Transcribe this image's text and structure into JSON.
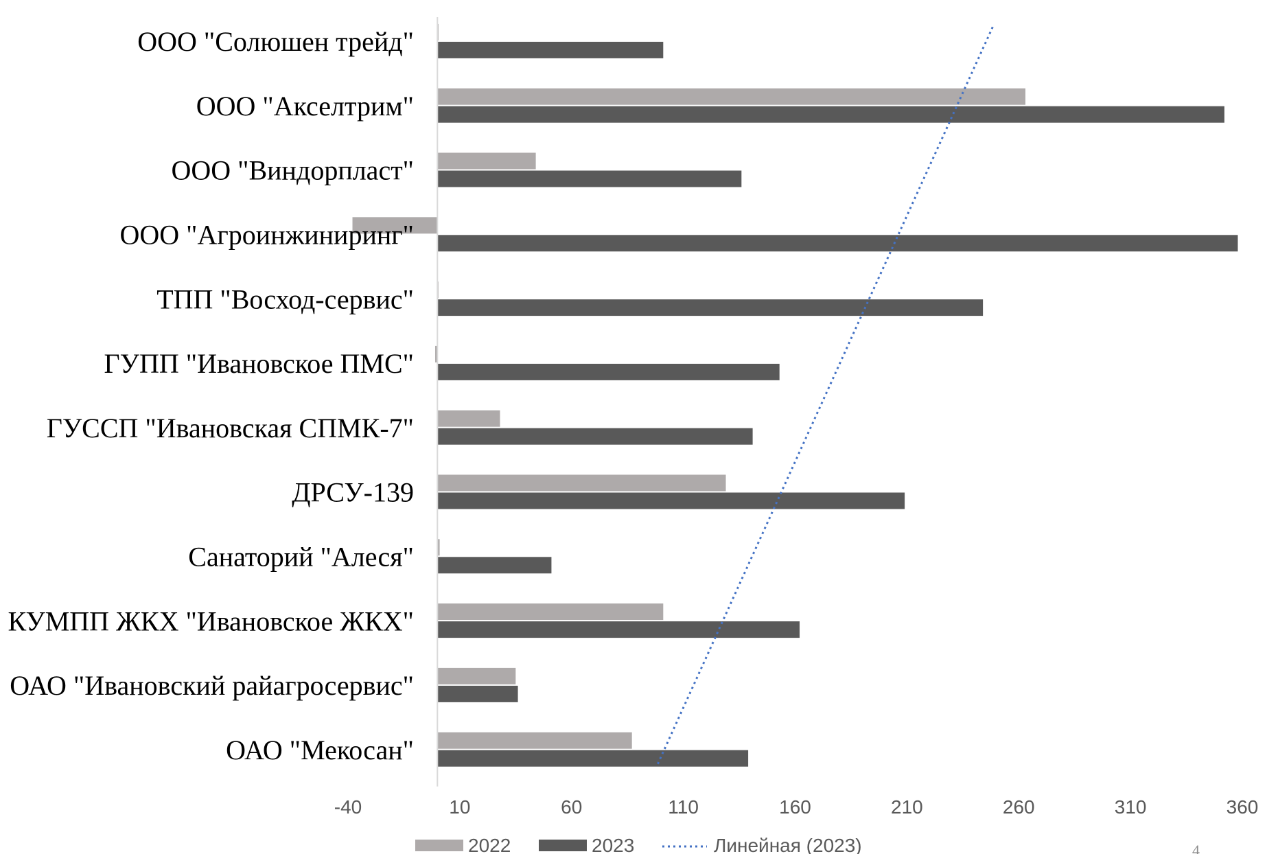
{
  "chart_data": {
    "type": "bar",
    "orientation": "horizontal",
    "categories": [
      "ООО \"Солюшен трейд\"",
      "ООО \"Акселтрим\"",
      "ООО \"Виндорпласт\"",
      "ООО \"Агроинжиниринг\"",
      "ТПП \"Восход-сервис\"",
      "ГУПП \"Ивановское ПМС\"",
      "ГУССП \"Ивановская СПМК-7\"",
      "ДРСУ-139",
      "Санаторий \"Алеся\"",
      "КУМПП ЖКХ \"Ивановское ЖКХ\"",
      "ОАО \"Ивановский райагросервис\"",
      "ОАО \"Мекосан\""
    ],
    "series": [
      {
        "name": "2022",
        "color": "#aeaaaa",
        "values": [
          0.5,
          263,
          44,
          -38,
          0,
          -1,
          28,
          129,
          1,
          101,
          35,
          87
        ]
      },
      {
        "name": "2023",
        "color": "#595959",
        "values": [
          101,
          352,
          136,
          358,
          244,
          153,
          141,
          209,
          51,
          162,
          36,
          139
        ]
      }
    ],
    "trendline": {
      "name": "Линейная (2023)",
      "series": "2023",
      "type": "linear",
      "color": "#4472c4",
      "style": "dotted"
    },
    "x_ticks": [
      "-40",
      "10",
      "60",
      "110",
      "160",
      "210",
      "260",
      "310",
      "360"
    ],
    "xlim": [
      -40,
      360
    ],
    "title": "",
    "xlabel": "",
    "ylabel": "",
    "grid": false,
    "legend_position": "bottom"
  },
  "page_number": "4"
}
